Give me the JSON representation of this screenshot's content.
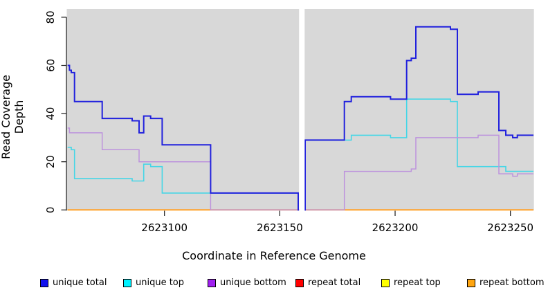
{
  "chart_data": {
    "type": "line",
    "step": "post",
    "title": "",
    "xlabel": "Coordinate in Reference Genome",
    "ylabel": "Read Coverage Depth",
    "xlim": [
      2623058,
      2623260
    ],
    "ylim": [
      0,
      80
    ],
    "xticks": [
      2623100,
      2623150,
      2623200,
      2623250
    ],
    "yticks": [
      0,
      20,
      40,
      60,
      80
    ],
    "panel_bg": "#d8d8d8",
    "gap_x": [
      2623158,
      2623160.8
    ],
    "legend_position": "bottom",
    "draw_order": [
      3,
      4,
      5,
      1,
      2,
      0
    ],
    "series": [
      {
        "name": "unique total",
        "line_color": "#2121dd",
        "swatch_color": "#1111ee",
        "line_width": 2,
        "points": [
          [
            2623058,
            60
          ],
          [
            2623058.8,
            58
          ],
          [
            2623059.6,
            57
          ],
          [
            2623061,
            45
          ],
          [
            2623073,
            38
          ],
          [
            2623086,
            37
          ],
          [
            2623089,
            32
          ],
          [
            2623091,
            39
          ],
          [
            2623094,
            38
          ],
          [
            2623099,
            27
          ],
          [
            2623120,
            7
          ],
          [
            2623158,
            0
          ],
          [
            2623161,
            29
          ],
          [
            2623178,
            45
          ],
          [
            2623181,
            47
          ],
          [
            2623198,
            46
          ],
          [
            2623205,
            62
          ],
          [
            2623207,
            63
          ],
          [
            2623209,
            76
          ],
          [
            2623224,
            75
          ],
          [
            2623227,
            48
          ],
          [
            2623236,
            49
          ],
          [
            2623245,
            33
          ],
          [
            2623248,
            31
          ],
          [
            2623251,
            30
          ],
          [
            2623253,
            31
          ]
        ]
      },
      {
        "name": "unique top",
        "line_color": "#45d6e6",
        "swatch_color": "#00f2ff",
        "line_width": 1.6,
        "points": [
          [
            2623058,
            26
          ],
          [
            2623059.6,
            25
          ],
          [
            2623061,
            13
          ],
          [
            2623086,
            12
          ],
          [
            2623091,
            19
          ],
          [
            2623094,
            18
          ],
          [
            2623099,
            7
          ],
          [
            2623158,
            0
          ],
          [
            2623161,
            29
          ],
          [
            2623181,
            31
          ],
          [
            2623198,
            30
          ],
          [
            2623205,
            46
          ],
          [
            2623224,
            45
          ],
          [
            2623227,
            18
          ],
          [
            2623248,
            16
          ]
        ]
      },
      {
        "name": "unique bottom",
        "line_color": "#bd93dd",
        "swatch_color": "#a020f0",
        "line_width": 1.5,
        "points": [
          [
            2623058,
            34
          ],
          [
            2623058.8,
            32
          ],
          [
            2623073,
            25
          ],
          [
            2623089,
            20
          ],
          [
            2623120,
            0
          ],
          [
            2623178,
            16
          ],
          [
            2623207,
            17
          ],
          [
            2623209,
            30
          ],
          [
            2623236,
            31
          ],
          [
            2623245,
            15
          ],
          [
            2623251,
            14
          ],
          [
            2623253,
            15
          ]
        ]
      },
      {
        "name": "repeat total",
        "line_color": "#e00000",
        "swatch_color": "#ff0000",
        "line_width": 1.5,
        "points": [
          [
            2623058,
            0
          ]
        ]
      },
      {
        "name": "repeat top",
        "line_color": "#f0e500",
        "swatch_color": "#ffff00",
        "line_width": 1.5,
        "points": [
          [
            2623058,
            0
          ]
        ]
      },
      {
        "name": "repeat bottom",
        "line_color": "#ffa128",
        "swatch_color": "#ffa510",
        "line_width": 2,
        "points": [
          [
            2623058,
            0
          ]
        ]
      }
    ]
  }
}
